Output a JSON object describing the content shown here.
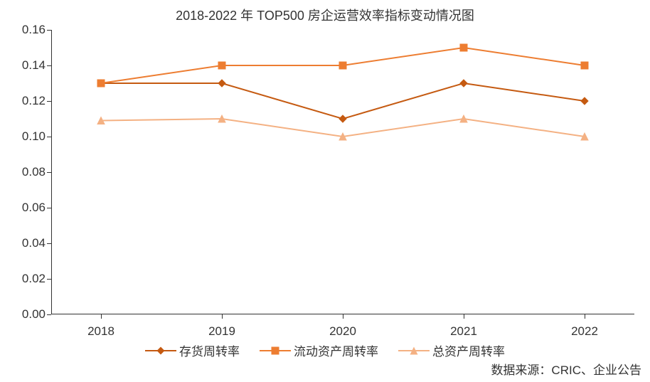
{
  "chart": {
    "type": "line",
    "title": "2018-2022 年 TOP500 房企运营效率指标变动情况图",
    "title_fontsize": 18,
    "categories": [
      "2018",
      "2019",
      "2020",
      "2021",
      "2022"
    ],
    "ylim": [
      0.0,
      0.16
    ],
    "ytick_step": 0.02,
    "ytick_labels": [
      "0.00",
      "0.02",
      "0.04",
      "0.06",
      "0.08",
      "0.10",
      "0.12",
      "0.14",
      "0.16"
    ],
    "label_fontsize": 17,
    "background_color": "#ffffff",
    "axis_color": "#333333",
    "line_width": 2,
    "marker_size": 10,
    "series": [
      {
        "name": "存货周转率",
        "values": [
          0.13,
          0.13,
          0.11,
          0.13,
          0.12
        ],
        "color": "#c55a11",
        "marker": "diamond"
      },
      {
        "name": "流动资产周转率",
        "values": [
          0.13,
          0.14,
          0.14,
          0.15,
          0.14
        ],
        "color": "#ed7d31",
        "marker": "square"
      },
      {
        "name": "总资产周转率",
        "values": [
          0.109,
          0.11,
          0.1,
          0.11,
          0.1
        ],
        "color": "#f4b183",
        "marker": "triangle"
      }
    ],
    "source_label": "数据来源：CRIC、企业公告"
  }
}
